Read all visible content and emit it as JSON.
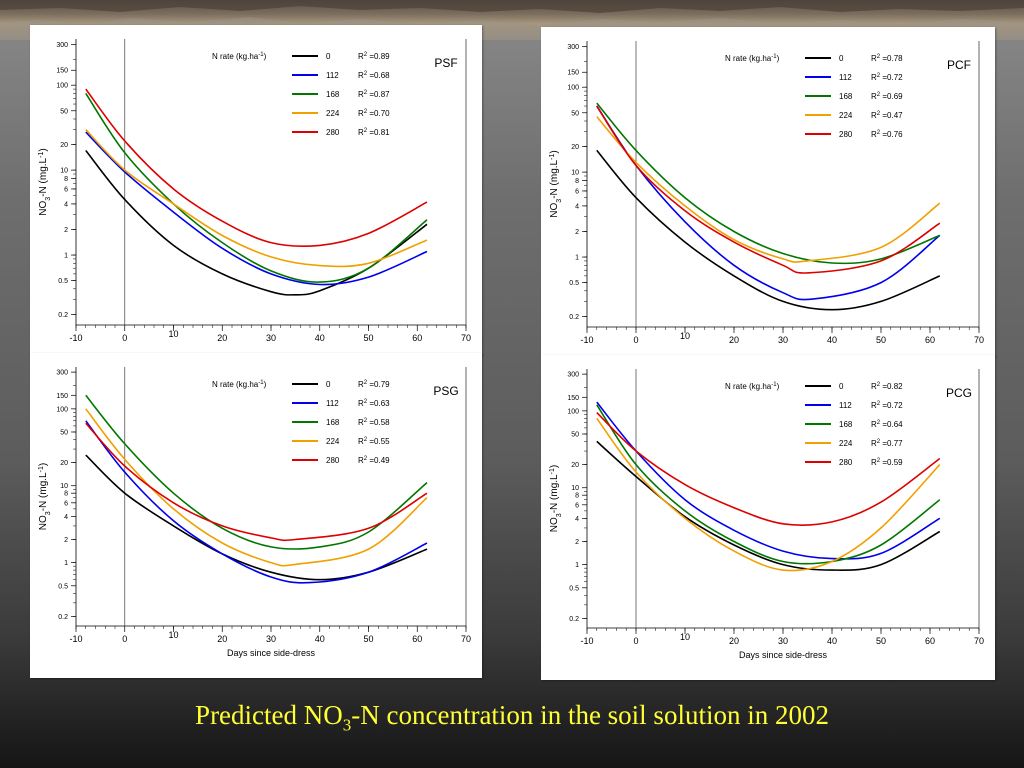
{
  "slide": {
    "title_prefix": "Predicted NO",
    "title_sub": "3",
    "title_suffix": "-N concentration in the soil solution in 2002",
    "title_color": "#ffff33"
  },
  "legend_header": "N rate (kg.ha",
  "legend_header_sup": "-1",
  "legend_header_close": ")",
  "ylabel_parts": [
    "NO",
    "3",
    "-N (mg.L",
    "-1",
    ")"
  ],
  "xlabel": "Days since side-dress",
  "series_colors": {
    "0": "#000000",
    "112": "#0000ee",
    "168": "#007700",
    "224": "#f0a000",
    "280": "#dd0000"
  },
  "chart_data": [
    {
      "type": "line",
      "title": "PSF",
      "xlim": [
        -10,
        70
      ],
      "yscale": "log",
      "ylim": [
        0.15,
        350
      ],
      "xticks": [
        -10,
        0,
        10,
        20,
        30,
        40,
        50,
        60,
        70
      ],
      "yticks": [
        0.2,
        0.5,
        1,
        2,
        4,
        6,
        8,
        10,
        20,
        50,
        100,
        150,
        300
      ],
      "xlabel": "",
      "series": [
        {
          "name": "0",
          "r2": "0.89",
          "x": [
            -8,
            0,
            10,
            20,
            30,
            35,
            40,
            50,
            62
          ],
          "y": [
            17,
            4.5,
            1.3,
            0.6,
            0.37,
            0.34,
            0.38,
            0.7,
            2.3
          ]
        },
        {
          "name": "112",
          "r2": "0.68",
          "x": [
            -8,
            0,
            10,
            20,
            30,
            40,
            50,
            62
          ],
          "y": [
            28,
            9.5,
            3.2,
            1.2,
            0.6,
            0.45,
            0.55,
            1.1
          ]
        },
        {
          "name": "168",
          "r2": "0.87",
          "x": [
            -8,
            0,
            10,
            20,
            30,
            40,
            50,
            62
          ],
          "y": [
            80,
            16,
            4,
            1.4,
            0.65,
            0.48,
            0.7,
            2.6
          ]
        },
        {
          "name": "224",
          "r2": "0.70",
          "x": [
            -8,
            0,
            10,
            20,
            30,
            40,
            50,
            62
          ],
          "y": [
            30,
            10,
            4,
            1.7,
            0.95,
            0.75,
            0.8,
            1.5
          ]
        },
        {
          "name": "280",
          "r2": "0.81",
          "x": [
            -8,
            0,
            10,
            20,
            30,
            40,
            50,
            62
          ],
          "y": [
            90,
            22,
            6,
            2.5,
            1.4,
            1.3,
            1.8,
            4.2
          ]
        }
      ]
    },
    {
      "type": "line",
      "title": "PCF",
      "xlim": [
        -10,
        70
      ],
      "yscale": "log",
      "ylim": [
        0.15,
        350
      ],
      "xticks": [
        -10,
        0,
        10,
        20,
        30,
        40,
        50,
        60,
        70
      ],
      "yticks": [
        0.2,
        0.5,
        1,
        2,
        4,
        6,
        8,
        10,
        20,
        50,
        100,
        150,
        300
      ],
      "xlabel": "",
      "series": [
        {
          "name": "0",
          "r2": "0.78",
          "x": [
            -8,
            0,
            10,
            20,
            30,
            40,
            50,
            62
          ],
          "y": [
            18,
            5,
            1.5,
            0.6,
            0.3,
            0.24,
            0.3,
            0.6
          ]
        },
        {
          "name": "112",
          "r2": "0.72",
          "x": [
            -8,
            0,
            10,
            20,
            30,
            36,
            50,
            62
          ],
          "y": [
            60,
            12,
            2.6,
            0.8,
            0.38,
            0.32,
            0.5,
            1.8
          ]
        },
        {
          "name": "168",
          "r2": "0.69",
          "x": [
            -8,
            0,
            10,
            20,
            30,
            40,
            50,
            62
          ],
          "y": [
            65,
            18,
            5,
            2,
            1.1,
            0.85,
            0.95,
            1.8
          ]
        },
        {
          "name": "224",
          "r2": "0.47",
          "x": [
            -8,
            0,
            10,
            20,
            30,
            35,
            50,
            62
          ],
          "y": [
            45,
            13,
            4,
            1.6,
            0.95,
            0.9,
            1.3,
            4.3
          ]
        },
        {
          "name": "280",
          "r2": "0.76",
          "x": [
            -8,
            0,
            10,
            20,
            30,
            35,
            50,
            62
          ],
          "y": [
            60,
            12,
            3.5,
            1.5,
            0.8,
            0.65,
            0.9,
            2.5
          ]
        }
      ]
    },
    {
      "type": "line",
      "title": "PSG",
      "xlim": [
        -10,
        70
      ],
      "yscale": "log",
      "ylim": [
        0.15,
        350
      ],
      "xticks": [
        -10,
        0,
        10,
        20,
        30,
        40,
        50,
        60,
        70
      ],
      "yticks": [
        0.2,
        0.5,
        1,
        2,
        4,
        6,
        8,
        10,
        20,
        50,
        100,
        150,
        300
      ],
      "xlabel": "Days since side-dress",
      "series": [
        {
          "name": "0",
          "r2": "0.79",
          "x": [
            -8,
            0,
            10,
            20,
            30,
            40,
            50,
            62
          ],
          "y": [
            25,
            8,
            3,
            1.3,
            0.75,
            0.6,
            0.75,
            1.5
          ]
        },
        {
          "name": "112",
          "r2": "0.63",
          "x": [
            -8,
            0,
            10,
            20,
            30,
            38,
            50,
            62
          ],
          "y": [
            70,
            15,
            3.5,
            1.3,
            0.65,
            0.55,
            0.75,
            1.8
          ]
        },
        {
          "name": "168",
          "r2": "0.58",
          "x": [
            -8,
            0,
            10,
            20,
            30,
            40,
            50,
            62
          ],
          "y": [
            150,
            35,
            8,
            2.8,
            1.6,
            1.6,
            2.5,
            11
          ]
        },
        {
          "name": "224",
          "r2": "0.55",
          "x": [
            -8,
            0,
            10,
            20,
            30,
            35,
            50,
            62
          ],
          "y": [
            100,
            22,
            5,
            1.8,
            1,
            0.95,
            1.5,
            7
          ]
        },
        {
          "name": "280",
          "r2": "0.49",
          "x": [
            -8,
            0,
            10,
            20,
            30,
            35,
            50,
            62
          ],
          "y": [
            65,
            18,
            6,
            3,
            2.1,
            2,
            2.8,
            8
          ]
        }
      ]
    },
    {
      "type": "line",
      "title": "PCG",
      "xlim": [
        -10,
        70
      ],
      "yscale": "log",
      "ylim": [
        0.15,
        350
      ],
      "xticks": [
        -10,
        0,
        10,
        20,
        30,
        40,
        50,
        60,
        70
      ],
      "yticks": [
        0.2,
        0.5,
        1,
        2,
        4,
        6,
        8,
        10,
        20,
        50,
        100,
        150,
        300
      ],
      "xlabel": "Days since side-dress",
      "series": [
        {
          "name": "0",
          "r2": "0.82",
          "x": [
            -8,
            0,
            10,
            20,
            30,
            40,
            50,
            62
          ],
          "y": [
            40,
            14,
            4.2,
            1.8,
            1.0,
            0.85,
            1.0,
            2.7
          ]
        },
        {
          "name": "112",
          "r2": "0.72",
          "x": [
            -8,
            0,
            10,
            20,
            30,
            40,
            50,
            62
          ],
          "y": [
            130,
            30,
            7,
            2.8,
            1.5,
            1.2,
            1.4,
            4
          ]
        },
        {
          "name": "168",
          "r2": "0.64",
          "x": [
            -8,
            0,
            10,
            20,
            30,
            40,
            50,
            62
          ],
          "y": [
            120,
            20,
            5,
            2,
            1.1,
            1.1,
            1.8,
            7
          ]
        },
        {
          "name": "224",
          "r2": "0.77",
          "x": [
            -8,
            0,
            10,
            20,
            30,
            40,
            50,
            62
          ],
          "y": [
            80,
            16,
            4,
            1.5,
            0.85,
            1.1,
            3,
            20
          ]
        },
        {
          "name": "280",
          "r2": "0.59",
          "x": [
            -8,
            0,
            10,
            20,
            30,
            40,
            50,
            62
          ],
          "y": [
            95,
            30,
            11,
            5.5,
            3.4,
            3.6,
            6.5,
            24
          ]
        }
      ]
    }
  ]
}
